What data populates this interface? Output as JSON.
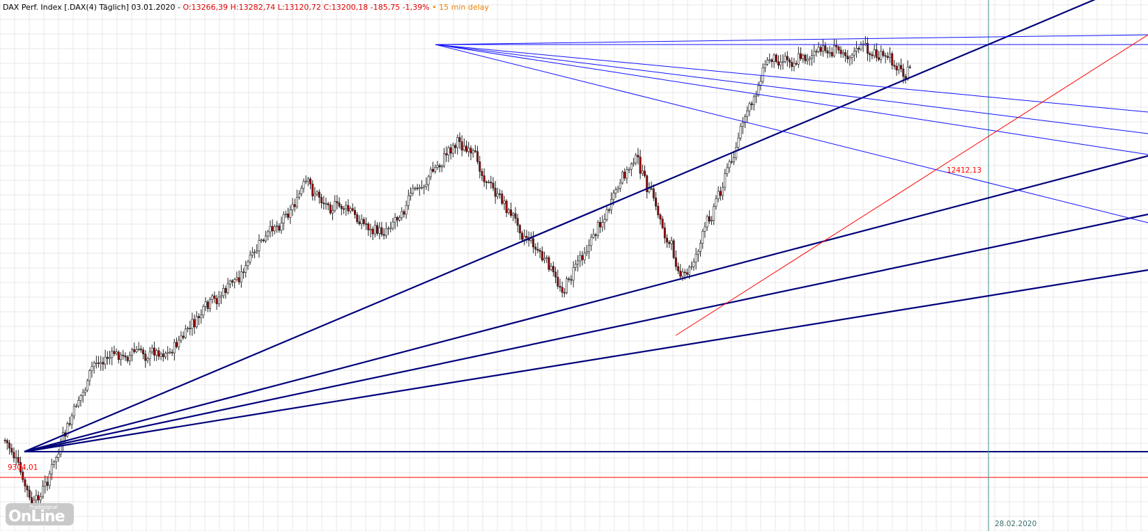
{
  "header": {
    "instrument": "DAX Perf. Index [.DAX(4) Täglich] 03.01.2020 -",
    "ohlc": "O:13266,39 H:13282,74 L:13120,72 C:13200,18 -185,75 -1,39%",
    "bullet": "•",
    "delay": "15 min delay"
  },
  "watermark": {
    "brand_small": "Tradesignal",
    "brand_big": "OnLine"
  },
  "colors": {
    "gann": "#00007a",
    "fan": "#1010ff",
    "red": "#ff0000",
    "grid": "#d0d0d0",
    "vline": "#5e9e9e"
  },
  "chart_data": {
    "type": "candlestick",
    "title": "DAX Perf. Index [.DAX(4) Täglich] 03.01.2020",
    "price_range": [
      9210,
      13830
    ],
    "time_range": [
      "2019-01-01",
      "2020-04-07"
    ],
    "grid": true,
    "annotations": [
      {
        "text": "9304,01",
        "kind": "horizontal-line",
        "value": 9304.01
      },
      {
        "text": "12412,13",
        "kind": "trendline-label",
        "value": 12412.13
      },
      {
        "text": "28.02.2020",
        "kind": "vertical-line",
        "date": "2020-02-28"
      }
    ],
    "key_points": [
      {
        "date": "2019-01-03",
        "value": 10000
      },
      {
        "date": "2019-01-14",
        "value": 9380
      },
      {
        "date": "2019-02-08",
        "value": 10700
      },
      {
        "date": "2019-03-11",
        "value": 10800
      },
      {
        "date": "2019-04-05",
        "value": 11400
      },
      {
        "date": "2019-05-03",
        "value": 12200
      },
      {
        "date": "2019-06-03",
        "value": 11800
      },
      {
        "date": "2019-07-04",
        "value": 12630
      },
      {
        "date": "2019-08-15",
        "value": 11300
      },
      {
        "date": "2019-09-13",
        "value": 12470
      },
      {
        "date": "2019-10-03",
        "value": 11350
      },
      {
        "date": "2019-11-05",
        "value": 13300
      },
      {
        "date": "2019-12-13",
        "value": 13420
      },
      {
        "date": "2020-01-03",
        "value": 13200
      }
    ]
  }
}
